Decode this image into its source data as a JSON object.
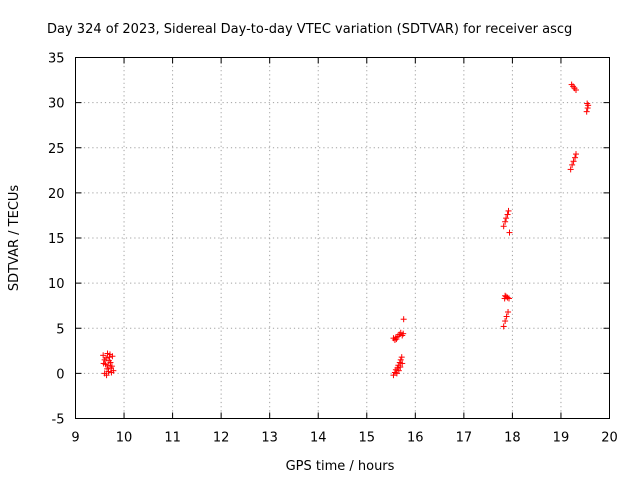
{
  "chart_data": {
    "type": "scatter",
    "title": "Day 324 of 2023, Sidereal Day-to-day VTEC variation (SDTVAR) for receiver ascg",
    "xlabel": "GPS time / hours",
    "ylabel": "SDTVAR / TECUs",
    "xlim": [
      9,
      20
    ],
    "ylim": [
      -5,
      35
    ],
    "xticks": [
      "9",
      "10",
      "11",
      "12",
      "13",
      "14",
      "15",
      "16",
      "17",
      "18",
      "19",
      "20"
    ],
    "yticks": [
      "-5",
      "0",
      "5",
      "10",
      "15",
      "20",
      "25",
      "30",
      "35"
    ],
    "grid": true,
    "marker": "+",
    "color": "#ff0000",
    "series": [
      {
        "name": "SDTVAR",
        "points": [
          [
            9.57,
            2.0
          ],
          [
            9.6,
            1.5
          ],
          [
            9.62,
            1.0
          ],
          [
            9.65,
            0.5
          ],
          [
            9.68,
            0.2
          ],
          [
            9.7,
            1.8
          ],
          [
            9.72,
            1.2
          ],
          [
            9.75,
            0.8
          ],
          [
            9.78,
            0.3
          ],
          [
            9.6,
            0.0
          ],
          [
            9.63,
            1.7
          ],
          [
            9.66,
            2.2
          ],
          [
            9.69,
            1.4
          ],
          [
            9.73,
            0.6
          ],
          [
            9.76,
            1.9
          ],
          [
            9.58,
            1.1
          ],
          [
            9.64,
            -0.2
          ],
          [
            9.71,
            2.1
          ],
          [
            9.74,
            0.1
          ],
          [
            9.67,
            0.9
          ],
          [
            15.55,
            -0.2
          ],
          [
            15.58,
            0.1
          ],
          [
            15.6,
            0.4
          ],
          [
            15.63,
            0.6
          ],
          [
            15.65,
            0.9
          ],
          [
            15.68,
            1.2
          ],
          [
            15.7,
            1.5
          ],
          [
            15.72,
            1.8
          ],
          [
            15.62,
            0.0
          ],
          [
            15.66,
            0.3
          ],
          [
            15.69,
            0.7
          ],
          [
            15.73,
            1.1
          ],
          [
            15.55,
            3.9
          ],
          [
            15.58,
            3.7
          ],
          [
            15.61,
            3.8
          ],
          [
            15.64,
            4.1
          ],
          [
            15.67,
            4.3
          ],
          [
            15.7,
            4.5
          ],
          [
            15.73,
            4.2
          ],
          [
            15.6,
            4.0
          ],
          [
            15.75,
            4.4
          ],
          [
            15.76,
            6.0
          ],
          [
            17.82,
            5.2
          ],
          [
            17.85,
            5.8
          ],
          [
            17.88,
            6.3
          ],
          [
            17.91,
            6.8
          ],
          [
            17.84,
            8.3
          ],
          [
            17.87,
            8.5
          ],
          [
            17.9,
            8.4
          ],
          [
            17.93,
            8.3
          ],
          [
            17.85,
            8.6
          ],
          [
            17.82,
            16.3
          ],
          [
            17.85,
            16.8
          ],
          [
            17.87,
            17.2
          ],
          [
            17.9,
            17.6
          ],
          [
            17.92,
            18.0
          ],
          [
            17.94,
            15.6
          ],
          [
            19.2,
            22.6
          ],
          [
            19.23,
            23.1
          ],
          [
            19.26,
            23.5
          ],
          [
            19.29,
            23.9
          ],
          [
            19.31,
            24.3
          ],
          [
            19.22,
            32.0
          ],
          [
            19.25,
            31.8
          ],
          [
            19.28,
            31.6
          ],
          [
            19.31,
            31.4
          ],
          [
            19.53,
            29.0
          ],
          [
            19.55,
            29.4
          ],
          [
            19.56,
            29.7
          ],
          [
            19.54,
            29.9
          ]
        ]
      }
    ]
  }
}
